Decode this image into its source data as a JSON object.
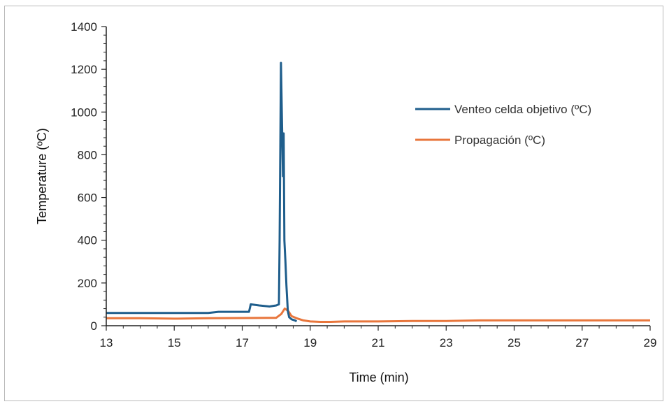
{
  "chart_data": {
    "type": "line",
    "title": "",
    "xlabel": "Time (min)",
    "ylabel": "Temperature (ºC)",
    "xlim": [
      13,
      29
    ],
    "ylim": [
      0,
      1400
    ],
    "xticks": [
      13,
      15,
      17,
      19,
      21,
      23,
      25,
      27,
      29
    ],
    "yticks": [
      0,
      200,
      400,
      600,
      800,
      1000,
      1200,
      1400
    ],
    "grid": false,
    "legend_position": "right",
    "series": [
      {
        "name": "Venteo celda objetivo (ºC)",
        "color": "#1f5e8c",
        "x": [
          13,
          14,
          15,
          16,
          16.3,
          17.2,
          17.25,
          17.5,
          17.8,
          18.0,
          18.08,
          18.1,
          18.14,
          18.17,
          18.2,
          18.22,
          18.24,
          18.27,
          18.3,
          18.34,
          18.38,
          18.45,
          18.55,
          18.6
        ],
        "y": [
          60,
          60,
          60,
          60,
          65,
          65,
          100,
          95,
          90,
          95,
          100,
          400,
          1230,
          950,
          700,
          900,
          400,
          300,
          190,
          70,
          40,
          30,
          25,
          20
        ]
      },
      {
        "name": "Propagación (ºC)",
        "color": "#e8763c",
        "x": [
          13,
          14,
          15,
          16,
          17,
          18.0,
          18.15,
          18.25,
          18.35,
          18.45,
          18.6,
          18.8,
          19.0,
          19.3,
          19.6,
          20,
          21,
          22,
          23,
          24,
          25,
          26,
          27,
          28,
          29
        ],
        "y": [
          35,
          35,
          33,
          35,
          36,
          37,
          55,
          80,
          70,
          45,
          35,
          25,
          20,
          18,
          18,
          20,
          20,
          22,
          22,
          25,
          25,
          25,
          25,
          25,
          25
        ]
      }
    ]
  }
}
